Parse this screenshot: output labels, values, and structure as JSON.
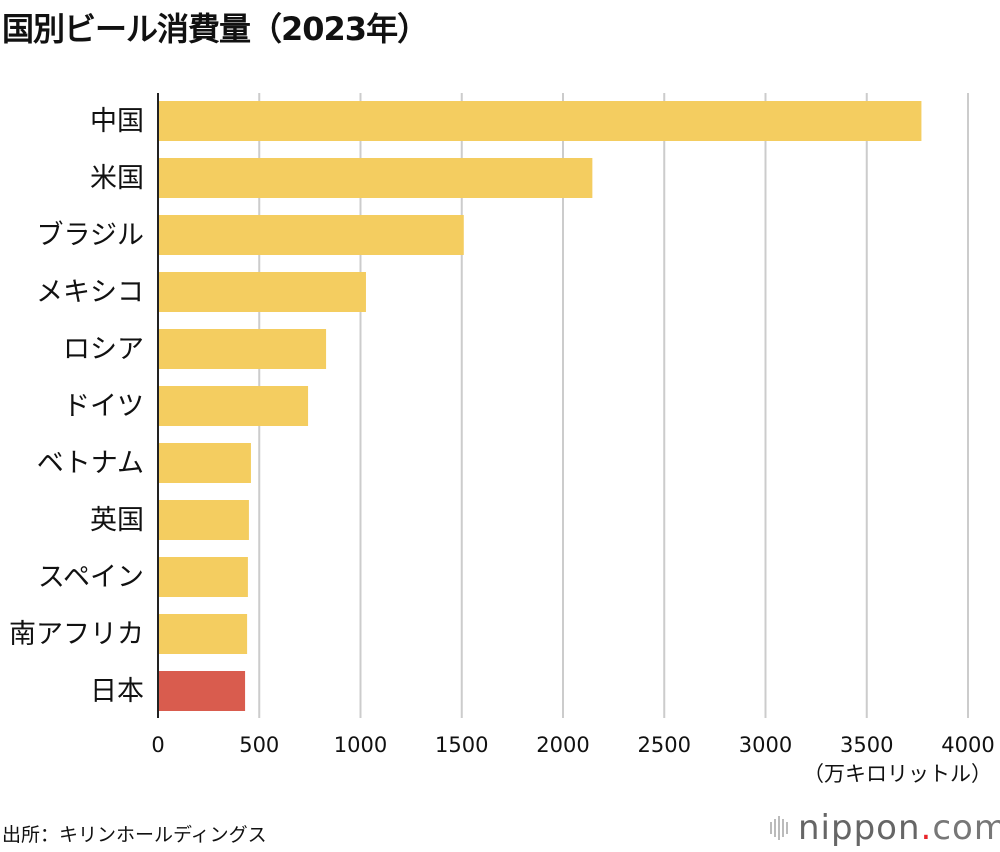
{
  "title": "国別ビール消費量（2023年）",
  "chart_data": {
    "type": "bar",
    "orientation": "horizontal",
    "title": "国別ビール消費量（2023年）",
    "categories": [
      "中国",
      "米国",
      "ブラジル",
      "メキシコ",
      "ロシア",
      "ドイツ",
      "ベトナム",
      "英国",
      "スペイン",
      "南アフリカ",
      "日本"
    ],
    "values": [
      3770,
      2145,
      1510,
      1027,
      830,
      741,
      459,
      449,
      444,
      440,
      430
    ],
    "highlight": "日本",
    "colors": {
      "default": "#f4cd60",
      "highlight": "#d95c4e",
      "grid": "#cccccc",
      "axis": "#222222"
    },
    "xlim": [
      0,
      4000
    ],
    "xticks": [
      "0",
      "500",
      "1000",
      "1500",
      "2000",
      "2500",
      "3000",
      "3500",
      "4000"
    ],
    "xlabel": "（万キロリットル）",
    "grid": true
  },
  "source": "出所：キリンホールディングス",
  "logo": {
    "name": "nippon",
    "dot": ".",
    "tld": "com"
  }
}
